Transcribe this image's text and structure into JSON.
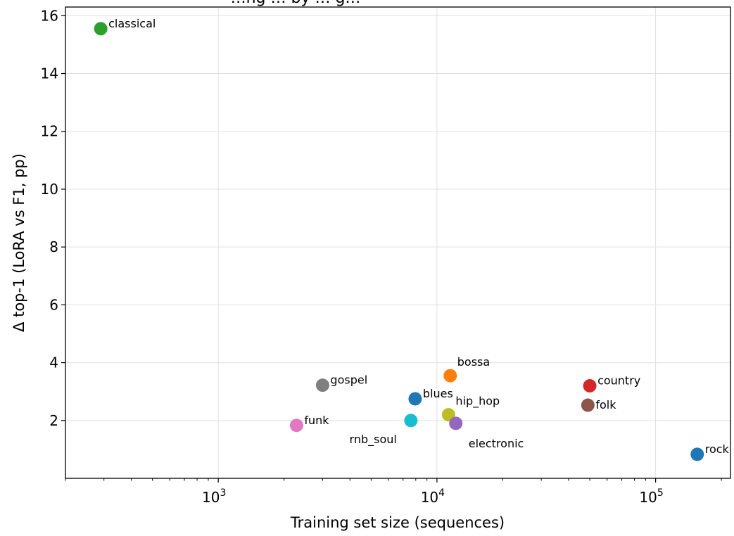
{
  "chart_data": {
    "type": "scatter",
    "title": "…ng … by … g…",
    "xlabel": "Training set size (sequences)",
    "ylabel": "Δ top-1 (LoRA vs F1, pp)",
    "xscale": "log",
    "xlim": [
      200,
      220000
    ],
    "ylim": [
      0.0,
      16.3
    ],
    "grid": true,
    "x_ticks": [
      {
        "value": 1000,
        "base": "10",
        "exp": "3"
      },
      {
        "value": 10000,
        "base": "10",
        "exp": "4"
      },
      {
        "value": 100000,
        "base": "10",
        "exp": "5"
      }
    ],
    "y_ticks": [
      2,
      4,
      6,
      8,
      10,
      12,
      14,
      16
    ],
    "points": [
      {
        "label": "classical",
        "x": 290,
        "y": 15.55,
        "color": "#2ca02c",
        "label_pos": "right-up"
      },
      {
        "label": "gospel",
        "x": 3000,
        "y": 3.22,
        "color": "#7f7f7f",
        "label_pos": "right-up"
      },
      {
        "label": "funk",
        "x": 2280,
        "y": 1.83,
        "color": "#e377c2",
        "label_pos": "right-up"
      },
      {
        "label": "rnb_soul",
        "x": 7600,
        "y": 2.0,
        "color": "#17becf",
        "label_pos": "below-left"
      },
      {
        "label": "blues",
        "x": 7950,
        "y": 2.75,
        "color": "#1f77b4",
        "label_pos": "right-up"
      },
      {
        "label": "bossa",
        "x": 11500,
        "y": 3.55,
        "color": "#ff7f0e",
        "label_pos": "above-right"
      },
      {
        "label": "hip_hop",
        "x": 11300,
        "y": 2.2,
        "color": "#bcbd22",
        "label_pos": "above-right"
      },
      {
        "label": "electronic",
        "x": 12200,
        "y": 1.9,
        "color": "#9467bd",
        "label_pos": "below-right"
      },
      {
        "label": "country",
        "x": 50000,
        "y": 3.2,
        "color": "#d62728",
        "label_pos": "right-up"
      },
      {
        "label": "folk",
        "x": 49000,
        "y": 2.53,
        "color": "#8c564b",
        "label_pos": "right"
      },
      {
        "label": "rock",
        "x": 155000,
        "y": 0.83,
        "color": "#1f77b4",
        "label_pos": "right-up"
      }
    ]
  }
}
